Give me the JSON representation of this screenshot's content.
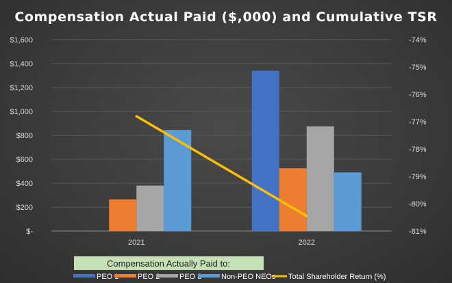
{
  "colors": {
    "peo1": "#4472c4",
    "peo2": "#ed7d31",
    "peo3": "#a5a5a5",
    "nonpeo": "#5b9bd5",
    "tsr": "#ffc000",
    "caption_bg": "#c5e0b4"
  },
  "chart_data": {
    "type": "bar",
    "title": "Compensation Actual Paid ($,000) and Cumulative TSR",
    "categories": [
      "2021",
      "2022"
    ],
    "ylim": [
      0,
      1600
    ],
    "y_ticks": [
      0,
      200,
      400,
      600,
      800,
      1000,
      1200,
      1400,
      1600
    ],
    "y_tick_labels": [
      "$-",
      "$200",
      "$400",
      "$600",
      "$800",
      "$1,000",
      "$1,200",
      "$1,400",
      "$1,600"
    ],
    "y2lim": [
      -81,
      -74
    ],
    "y2_ticks": [
      -74,
      -75,
      -76,
      -77,
      -78,
      -79,
      -80,
      -81
    ],
    "y2_tick_labels": [
      "-74%",
      "-75%",
      "-76%",
      "-77%",
      "-78%",
      "-79%",
      "-80%",
      "-81%"
    ],
    "series": [
      {
        "name": "PEO 1",
        "color_key": "peo1",
        "values": [
          null,
          1340
        ]
      },
      {
        "name": "PEO 2",
        "color_key": "peo2",
        "values": [
          265,
          525
        ]
      },
      {
        "name": "PEO 3",
        "color_key": "peo3",
        "values": [
          380,
          875
        ]
      },
      {
        "name": "Non-PEO NEOs",
        "color_key": "nonpeo",
        "values": [
          845,
          490
        ]
      }
    ],
    "line_series": {
      "name": "Total Shareholder Return (%)",
      "color_key": "tsr",
      "axis": "secondary",
      "values": [
        -76.8,
        -80.45
      ]
    },
    "legend_caption": "Compensation Actually Paid to:",
    "legend_position": "bottom"
  }
}
